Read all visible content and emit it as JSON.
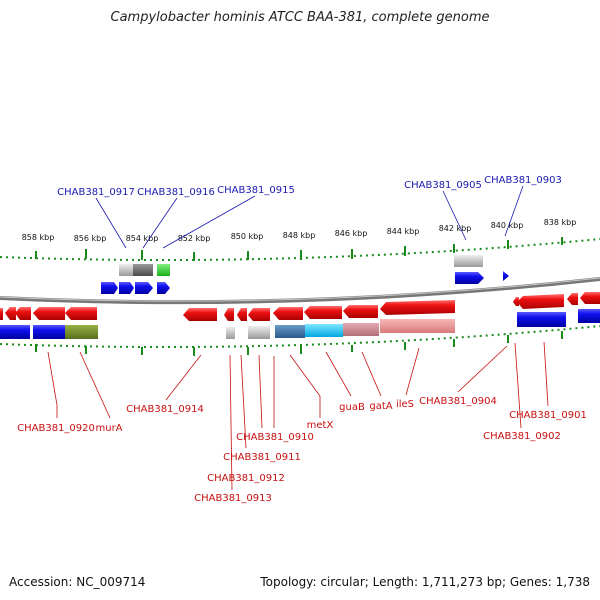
{
  "title": "Campylobacter hominis ATCC BAA-381, complete genome",
  "accession": "Accession: NC_009714",
  "topology": "Topology: circular; Length: 1,711,273 bp; Genes: 1,738",
  "kbp_ticks": [
    "858 kbp",
    "856 kbp",
    "854 kbp",
    "852 kbp",
    "850 kbp",
    "848 kbp",
    "846 kbp",
    "844 kbp",
    "842 kbp",
    "840 kbp",
    "838 kbp"
  ],
  "labels_top": [
    "CHAB381_0917",
    "CHAB381_0916",
    "CHAB381_0915",
    "CHAB381_0905",
    "CHAB381_0903"
  ],
  "labels_bottom": [
    "CHAB381_0920",
    "murA",
    "CHAB381_0914",
    "CHAB381_0910",
    "CHAB381_0911",
    "CHAB381_0912",
    "CHAB381_0913",
    "metX",
    "guaB",
    "gatA",
    "ileS",
    "CHAB381_0904",
    "CHAB381_0901",
    "CHAB381_0902"
  ],
  "colors": {
    "forward_gene": "#1010e8",
    "reverse_gene": "#e81010",
    "top_label": "#1a1ab0",
    "bottom_label": "#c81010",
    "gc_tick": "#1a8a1a",
    "backbone": "#8a8a8a"
  }
}
